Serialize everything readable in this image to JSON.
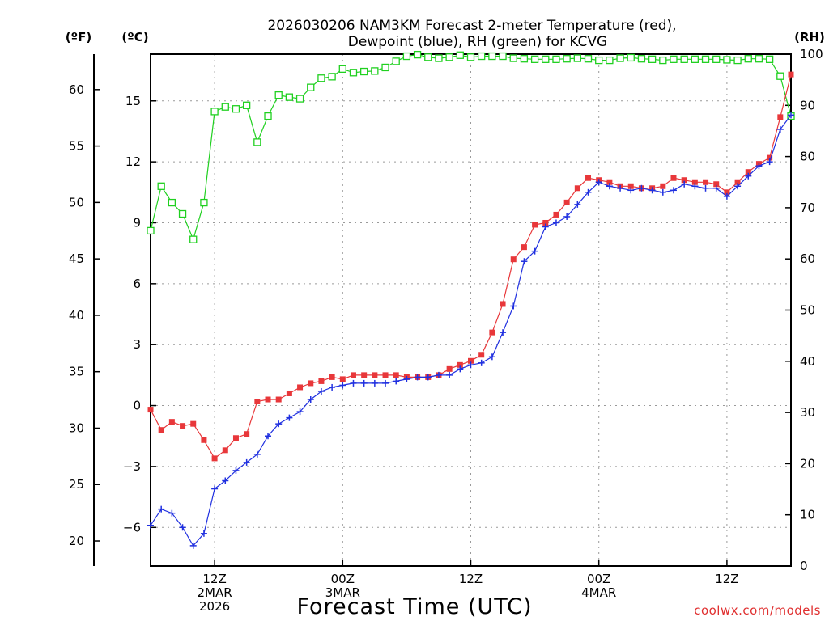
{
  "chart_data": {
    "type": "line",
    "title_line1": "2026030206 NAM3KM Forecast 2-meter Temperature (red),",
    "title_line2": "Dewpoint (blue), RH (green) for KCVG",
    "xlabel": "Forecast Time (UTC)",
    "credit": "coolwx.com/models",
    "unit_f": "(ºF)",
    "unit_c": "(ºC)",
    "unit_rh": "(RH)",
    "celsius_axis": {
      "ylim": [
        -7.9,
        17.3
      ],
      "ticks": [
        "15",
        "12",
        "9",
        "6",
        "3",
        "0",
        "-3",
        "-6"
      ],
      "tick_values": [
        15,
        12,
        9,
        6,
        3,
        0,
        -3,
        -6
      ]
    },
    "fahrenheit_axis": {
      "ticks": [
        "60",
        "55",
        "50",
        "45",
        "40",
        "35",
        "30",
        "25",
        "20"
      ],
      "tick_values": [
        60,
        55,
        50,
        45,
        40,
        35,
        30,
        25,
        20
      ]
    },
    "rh_axis": {
      "ylim": [
        0,
        100
      ],
      "ticks": [
        "100",
        "90",
        "80",
        "70",
        "60",
        "50",
        "40",
        "30",
        "20",
        "10",
        "0"
      ],
      "tick_values": [
        100,
        90,
        80,
        70,
        60,
        50,
        40,
        30,
        20,
        10,
        0
      ]
    },
    "x_axis": {
      "range_hours": [
        0,
        60
      ],
      "ticks": [
        {
          "hour": 6,
          "line1": "12Z",
          "line2": "2MAR",
          "line3": "2026"
        },
        {
          "hour": 18,
          "line1": "00Z",
          "line2": "3MAR",
          "line3": ""
        },
        {
          "hour": 30,
          "line1": "12Z",
          "line2": "",
          "line3": ""
        },
        {
          "hour": 42,
          "line1": "00Z",
          "line2": "4MAR",
          "line3": ""
        },
        {
          "hour": 54,
          "line1": "12Z",
          "line2": "",
          "line3": ""
        }
      ]
    },
    "series": [
      {
        "name": "Temperature",
        "color": "#e8373a",
        "marker": "filled-square",
        "values": [
          -0.2,
          -1.2,
          -0.8,
          -1.0,
          -0.9,
          -1.7,
          -2.6,
          -2.2,
          -1.6,
          -1.4,
          0.2,
          0.3,
          0.3,
          0.6,
          0.9,
          1.1,
          1.2,
          1.4,
          1.3,
          1.5,
          1.5,
          1.5,
          1.5,
          1.5,
          1.4,
          1.4,
          1.4,
          1.5,
          1.8,
          2.0,
          2.2,
          2.5,
          3.6,
          5.0,
          7.2,
          7.8,
          8.9,
          9.0,
          9.4,
          10.0,
          10.7,
          11.2,
          11.1,
          11.0,
          10.8,
          10.8,
          10.7,
          10.7,
          10.8,
          11.2,
          11.1,
          11.0,
          11.0,
          10.9,
          10.5,
          11.0,
          11.5,
          11.9,
          12.2,
          14.2,
          16.3
        ]
      },
      {
        "name": "Dewpoint",
        "color": "#2030e0",
        "marker": "plus",
        "values": [
          -5.9,
          -5.1,
          -5.3,
          -6.0,
          -6.9,
          -6.3,
          -4.1,
          -3.7,
          -3.2,
          -2.8,
          -2.4,
          -1.5,
          -0.9,
          -0.6,
          -0.3,
          0.3,
          0.7,
          0.9,
          1.0,
          1.1,
          1.1,
          1.1,
          1.1,
          1.2,
          1.3,
          1.4,
          1.4,
          1.5,
          1.5,
          1.8,
          2.0,
          2.1,
          2.4,
          3.6,
          4.9,
          7.1,
          7.6,
          8.8,
          9.0,
          9.3,
          9.9,
          10.5,
          11.0,
          10.8,
          10.7,
          10.6,
          10.7,
          10.6,
          10.5,
          10.6,
          10.9,
          10.8,
          10.7,
          10.7,
          10.3,
          10.8,
          11.3,
          11.8,
          12.0,
          13.6,
          14.3
        ]
      },
      {
        "name": "RH",
        "color": "#20d020",
        "marker": "open-square",
        "axis": "rh",
        "values": [
          65.5,
          74.2,
          71.0,
          68.8,
          63.8,
          71.0,
          88.8,
          89.7,
          89.3,
          90.0,
          82.8,
          87.9,
          92.0,
          91.6,
          91.3,
          93.5,
          95.3,
          95.6,
          97.1,
          96.4,
          96.6,
          96.7,
          97.4,
          98.6,
          99.6,
          99.9,
          99.4,
          99.2,
          99.4,
          99.8,
          99.4,
          99.6,
          99.6,
          99.6,
          99.2,
          99.1,
          99.0,
          99.0,
          99.0,
          99.1,
          99.2,
          99.1,
          98.8,
          98.8,
          99.2,
          99.3,
          99.1,
          99.0,
          98.8,
          99.0,
          99.0,
          99.0,
          99.0,
          99.0,
          98.9,
          98.8,
          99.1,
          99.1,
          99.0,
          95.7,
          87.9
        ]
      }
    ]
  }
}
